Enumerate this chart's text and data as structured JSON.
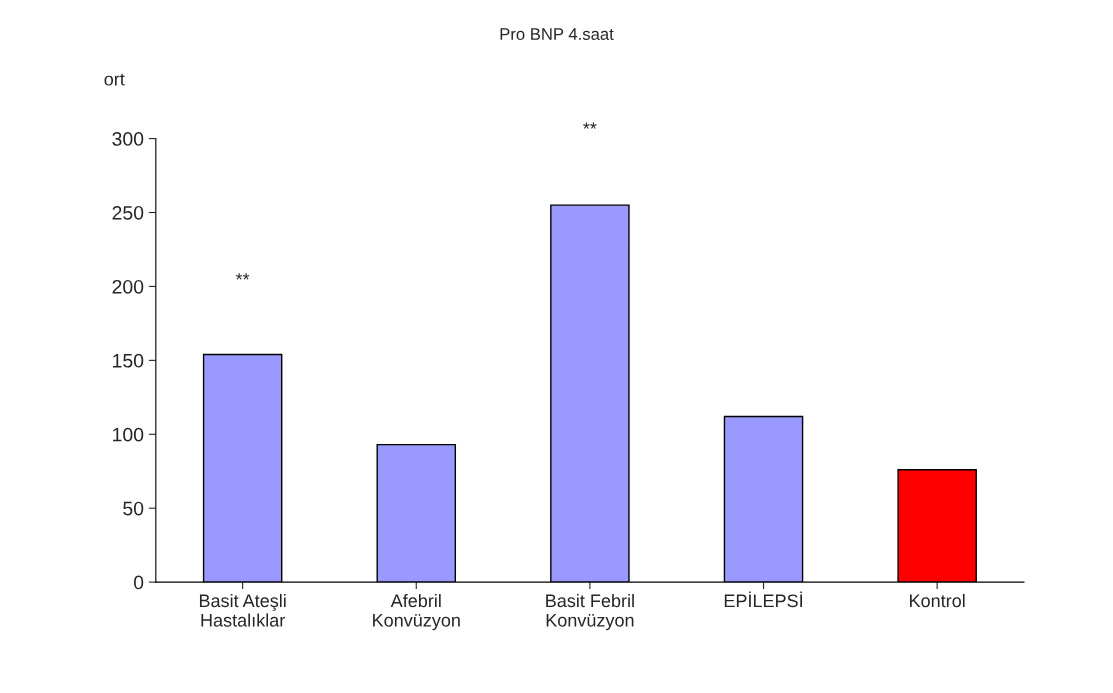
{
  "chart_data": {
    "type": "bar",
    "title": "Pro BNP 4.saat",
    "ylabel": "ort",
    "categories": [
      "Basit Ateşli\nHastalıklar",
      "Afebril\nKonvüzyon",
      "Basit Febril\nKonvüzyon",
      "EPİLEPSİ",
      "Kontrol"
    ],
    "values": [
      154,
      93,
      255,
      112,
      76
    ],
    "colors": [
      "#9999ff",
      "#9999ff",
      "#9999ff",
      "#9999ff",
      "#ff0000"
    ],
    "ylim": [
      0,
      300
    ],
    "yticks": [
      0,
      50,
      100,
      150,
      200,
      250,
      300
    ],
    "annotations": [
      "**",
      "**"
    ],
    "grid": false,
    "legend": false
  }
}
